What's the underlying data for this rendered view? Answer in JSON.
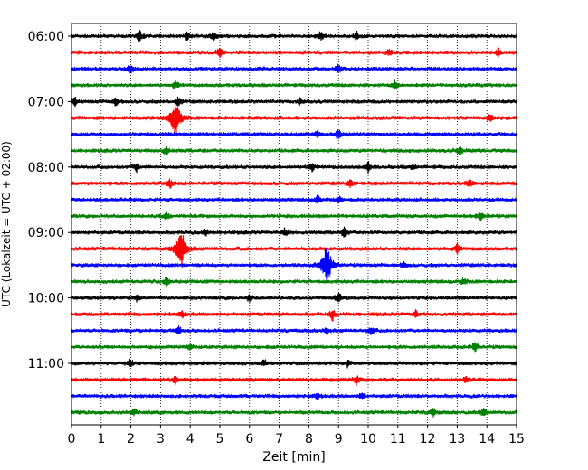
{
  "chart_data": {
    "type": "line",
    "chart_kind": "helicorder (drum seismogram)",
    "xlabel": "Zeit  [min]",
    "ylabel": "UTC (Lokalzeit = UTC + 02:00)",
    "xlim": [
      0,
      15
    ],
    "x_ticks": [
      0,
      1,
      2,
      3,
      4,
      5,
      6,
      7,
      8,
      9,
      10,
      11,
      12,
      13,
      14,
      15
    ],
    "x_tick_labels": [
      "0",
      "1",
      "2",
      "3",
      "4",
      "5",
      "6",
      "7",
      "8",
      "9",
      "10",
      "11",
      "12",
      "13",
      "14",
      "15"
    ],
    "y_tick_labels": [
      "06:00",
      "07:00",
      "08:00",
      "09:00",
      "10:00",
      "11:00"
    ],
    "y_tick_rows": [
      0,
      4,
      8,
      12,
      16,
      20
    ],
    "row_interval_minutes": 15,
    "row_count": 24,
    "color_cycle": [
      "#000000",
      "#ff0000",
      "#0000ff",
      "#008000"
    ],
    "vertical_grid": "dotted, at each minute",
    "series_rows": [
      {
        "row": 0,
        "events": [
          {
            "x": 2.3,
            "amp": 0.25
          },
          {
            "x": 3.9,
            "amp": 0.18
          },
          {
            "x": 4.8,
            "amp": 0.2
          },
          {
            "x": 8.4,
            "amp": 0.2
          },
          {
            "x": 9.6,
            "amp": 0.2
          }
        ]
      },
      {
        "row": 1,
        "events": [
          {
            "x": 5.0,
            "amp": 0.2
          },
          {
            "x": 10.7,
            "amp": 0.15
          },
          {
            "x": 14.4,
            "amp": 0.2
          }
        ]
      },
      {
        "row": 2,
        "events": [
          {
            "x": 2.0,
            "amp": 0.2
          },
          {
            "x": 9.0,
            "amp": 0.2
          }
        ]
      },
      {
        "row": 3,
        "events": [
          {
            "x": 3.5,
            "amp": 0.18
          },
          {
            "x": 10.9,
            "amp": 0.2
          }
        ]
      },
      {
        "row": 4,
        "events": [
          {
            "x": 0.1,
            "amp": 0.2
          },
          {
            "x": 1.5,
            "amp": 0.2
          },
          {
            "x": 3.6,
            "amp": 0.2
          },
          {
            "x": 7.7,
            "amp": 0.15
          }
        ]
      },
      {
        "row": 5,
        "events": [
          {
            "x": 3.5,
            "amp": 0.8
          },
          {
            "x": 14.1,
            "amp": 0.2
          }
        ]
      },
      {
        "row": 6,
        "events": [
          {
            "x": 8.3,
            "amp": 0.15
          },
          {
            "x": 9.0,
            "amp": 0.2
          }
        ]
      },
      {
        "row": 7,
        "events": [
          {
            "x": 3.2,
            "amp": 0.2
          },
          {
            "x": 13.1,
            "amp": 0.2
          }
        ]
      },
      {
        "row": 8,
        "events": [
          {
            "x": 2.2,
            "amp": 0.2
          },
          {
            "x": 8.1,
            "amp": 0.2
          },
          {
            "x": 10.0,
            "amp": 0.25
          },
          {
            "x": 11.5,
            "amp": 0.15
          }
        ]
      },
      {
        "row": 9,
        "events": [
          {
            "x": 3.3,
            "amp": 0.2
          },
          {
            "x": 9.4,
            "amp": 0.2
          },
          {
            "x": 13.4,
            "amp": 0.2
          }
        ]
      },
      {
        "row": 10,
        "events": [
          {
            "x": 8.3,
            "amp": 0.2
          },
          {
            "x": 9.0,
            "amp": 0.2
          }
        ]
      },
      {
        "row": 11,
        "events": [
          {
            "x": 3.2,
            "amp": 0.18
          },
          {
            "x": 13.8,
            "amp": 0.2
          }
        ]
      },
      {
        "row": 12,
        "events": [
          {
            "x": 4.5,
            "amp": 0.15
          },
          {
            "x": 7.2,
            "amp": 0.2
          },
          {
            "x": 9.2,
            "amp": 0.2
          }
        ]
      },
      {
        "row": 13,
        "events": [
          {
            "x": 3.7,
            "amp": 0.9
          },
          {
            "x": 13.0,
            "amp": 0.2
          }
        ]
      },
      {
        "row": 14,
        "events": [
          {
            "x": 8.6,
            "amp": 0.95
          },
          {
            "x": 11.2,
            "amp": 0.15
          }
        ]
      },
      {
        "row": 15,
        "events": [
          {
            "x": 3.2,
            "amp": 0.2
          },
          {
            "x": 13.2,
            "amp": 0.15
          }
        ]
      },
      {
        "row": 16,
        "events": [
          {
            "x": 2.2,
            "amp": 0.15
          },
          {
            "x": 6.0,
            "amp": 0.15
          },
          {
            "x": 9.0,
            "amp": 0.2
          }
        ]
      },
      {
        "row": 17,
        "events": [
          {
            "x": 3.7,
            "amp": 0.2
          },
          {
            "x": 8.8,
            "amp": 0.25
          },
          {
            "x": 11.6,
            "amp": 0.15
          }
        ]
      },
      {
        "row": 18,
        "events": [
          {
            "x": 3.6,
            "amp": 0.2
          },
          {
            "x": 8.6,
            "amp": 0.2
          },
          {
            "x": 10.1,
            "amp": 0.2
          }
        ]
      },
      {
        "row": 19,
        "events": [
          {
            "x": 4.0,
            "amp": 0.2
          },
          {
            "x": 13.6,
            "amp": 0.25
          }
        ]
      },
      {
        "row": 20,
        "events": [
          {
            "x": 2.0,
            "amp": 0.15
          },
          {
            "x": 6.5,
            "amp": 0.15
          },
          {
            "x": 9.3,
            "amp": 0.15
          }
        ]
      },
      {
        "row": 21,
        "events": [
          {
            "x": 3.5,
            "amp": 0.2
          },
          {
            "x": 9.6,
            "amp": 0.2
          },
          {
            "x": 13.3,
            "amp": 0.15
          }
        ]
      },
      {
        "row": 22,
        "events": [
          {
            "x": 8.3,
            "amp": 0.2
          },
          {
            "x": 9.8,
            "amp": 0.15
          }
        ]
      },
      {
        "row": 23,
        "events": [
          {
            "x": 2.1,
            "amp": 0.15
          },
          {
            "x": 12.2,
            "amp": 0.2
          },
          {
            "x": 13.9,
            "amp": 0.2
          }
        ]
      }
    ]
  }
}
